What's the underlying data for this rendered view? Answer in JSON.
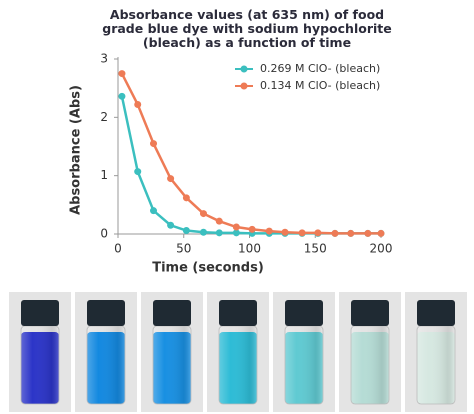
{
  "chart_data": {
    "type": "line",
    "title": "Absorbance values (at 635 nm) of food grade blue dye with sodium hypochlorite (bleach) as a function of time",
    "x_label": "Time (seconds)",
    "y_label": "Absorbance (Abs)",
    "x": [
      3,
      15,
      27,
      40,
      52,
      65,
      77,
      90,
      102,
      115,
      127,
      140,
      152,
      165,
      177,
      190,
      200
    ],
    "series": [
      {
        "name": "0.269 M ClO- (bleach)",
        "color": "#3bbfbf",
        "values": [
          2.36,
          1.07,
          0.4,
          0.15,
          0.06,
          0.03,
          0.02,
          0.02,
          0.01,
          0.01,
          0.01,
          0.01,
          0.01,
          0.01,
          0.01,
          0.01,
          0.01
        ]
      },
      {
        "name": "0.134 M ClO- (bleach)",
        "color": "#ee7b56",
        "values": [
          2.75,
          2.22,
          1.55,
          0.95,
          0.62,
          0.35,
          0.22,
          0.12,
          0.08,
          0.05,
          0.03,
          0.02,
          0.02,
          0.01,
          0.01,
          0.01,
          0.01
        ]
      }
    ],
    "xlim": [
      0,
      200
    ],
    "xticks": [
      0,
      50,
      100,
      150,
      200
    ],
    "ylim": [
      0,
      3
    ],
    "yticks": [
      0,
      1,
      2,
      3
    ],
    "grid": false,
    "legend": "upper right"
  }
}
